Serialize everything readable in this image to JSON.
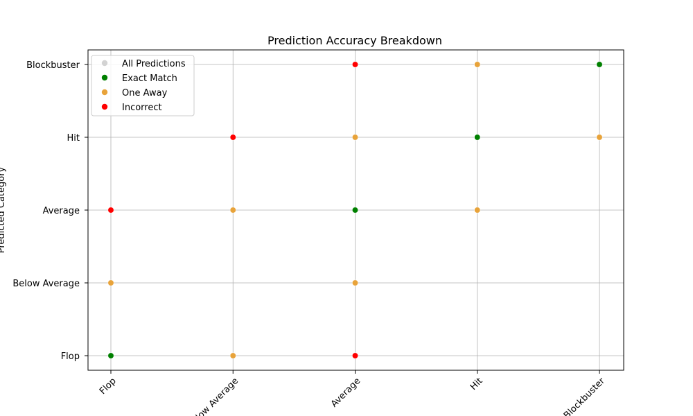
{
  "chart_data": {
    "type": "scatter",
    "title": "Prediction Accuracy Breakdown",
    "xlabel": "",
    "ylabel": "Predicted Category",
    "categories": [
      "Flop",
      "Below Average",
      "Average",
      "Hit",
      "Blockbuster"
    ],
    "grid": true,
    "legend_position": "upper-left",
    "series": [
      {
        "name": "All Predictions",
        "color": "#d3d3d3",
        "points": []
      },
      {
        "name": "Exact Match",
        "color": "#008000",
        "points": [
          [
            "Flop",
            "Flop"
          ],
          [
            "Average",
            "Average"
          ],
          [
            "Hit",
            "Hit"
          ],
          [
            "Blockbuster",
            "Blockbuster"
          ]
        ]
      },
      {
        "name": "One Away",
        "color": "#e8a33a",
        "points": [
          [
            "Flop",
            "Below Average"
          ],
          [
            "Below Average",
            "Flop"
          ],
          [
            "Below Average",
            "Average"
          ],
          [
            "Average",
            "Below Average"
          ],
          [
            "Average",
            "Hit"
          ],
          [
            "Hit",
            "Average"
          ],
          [
            "Hit",
            "Blockbuster"
          ],
          [
            "Blockbuster",
            "Hit"
          ]
        ]
      },
      {
        "name": "Incorrect",
        "color": "#ff0000",
        "points": [
          [
            "Flop",
            "Average"
          ],
          [
            "Below Average",
            "Hit"
          ],
          [
            "Average",
            "Flop"
          ],
          [
            "Average",
            "Blockbuster"
          ]
        ]
      }
    ]
  }
}
